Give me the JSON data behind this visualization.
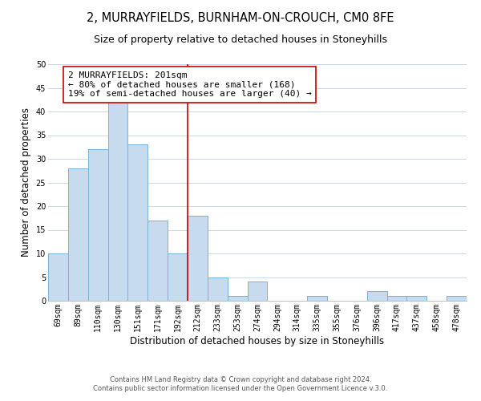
{
  "title": "2, MURRAYFIELDS, BURNHAM-ON-CROUCH, CM0 8FE",
  "subtitle": "Size of property relative to detached houses in Stoneyhills",
  "xlabel": "Distribution of detached houses by size in Stoneyhills",
  "ylabel": "Number of detached properties",
  "bar_labels": [
    "69sqm",
    "89sqm",
    "110sqm",
    "130sqm",
    "151sqm",
    "171sqm",
    "192sqm",
    "212sqm",
    "233sqm",
    "253sqm",
    "274sqm",
    "294sqm",
    "314sqm",
    "335sqm",
    "355sqm",
    "376sqm",
    "396sqm",
    "417sqm",
    "437sqm",
    "458sqm",
    "478sqm"
  ],
  "bar_values": [
    10,
    28,
    32,
    42,
    33,
    17,
    10,
    18,
    5,
    1,
    4,
    0,
    0,
    1,
    0,
    0,
    2,
    1,
    1,
    0,
    1
  ],
  "bar_color": "#c6dcee",
  "bar_edgecolor": "#7ab3d4",
  "vline_x": 6.5,
  "vline_color": "#cc0000",
  "annotation_text": "2 MURRAYFIELDS: 201sqm\n← 80% of detached houses are smaller (168)\n19% of semi-detached houses are larger (40) →",
  "annotation_box_edgecolor": "#cc0000",
  "annotation_box_facecolor": "#ffffff",
  "ylim": [
    0,
    50
  ],
  "yticks": [
    0,
    5,
    10,
    15,
    20,
    25,
    30,
    35,
    40,
    45,
    50
  ],
  "footer1": "Contains HM Land Registry data © Crown copyright and database right 2024.",
  "footer2": "Contains public sector information licensed under the Open Government Licence v.3.0.",
  "title_fontsize": 10.5,
  "subtitle_fontsize": 9,
  "axis_label_fontsize": 8.5,
  "tick_fontsize": 7,
  "annotation_fontsize": 8,
  "footer_fontsize": 6,
  "background_color": "#ffffff",
  "grid_color": "#c8d8e8"
}
